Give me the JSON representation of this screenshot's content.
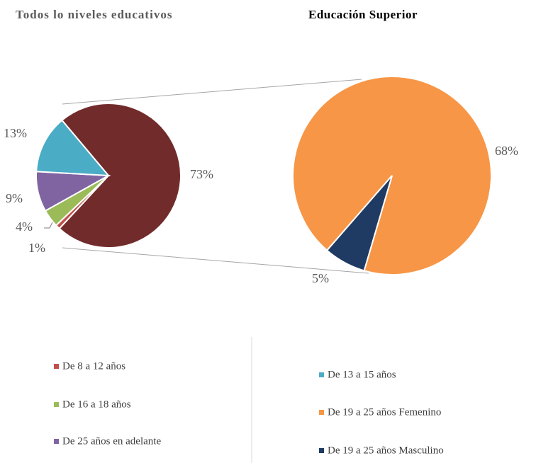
{
  "chart_data": {
    "type": "pie_of_pie",
    "pies": [
      {
        "title": "Todos lo niveles educativos",
        "categories": [
          null,
          "De 8 a 12 años",
          "De 16 a 18 años",
          "De 25 años en adelante",
          "De 13 a 15 años"
        ],
        "values": [
          73,
          1,
          4,
          9,
          13
        ],
        "value_labels": [
          "73%",
          "1%",
          "4%",
          "9%",
          "13%"
        ],
        "colors": [
          "#722b2b",
          "#c0504d",
          "#9bbb59",
          "#8064a2",
          "#4bacc6"
        ]
      },
      {
        "title": "Educación Superior",
        "categories": [
          "De 19 a 25 años Femenino",
          "De 19 a 25 años Masculino"
        ],
        "values": [
          68,
          5
        ],
        "value_labels": [
          "68%",
          "5%"
        ],
        "colors": [
          "#f79646",
          "#1f3b63"
        ]
      }
    ]
  }
}
